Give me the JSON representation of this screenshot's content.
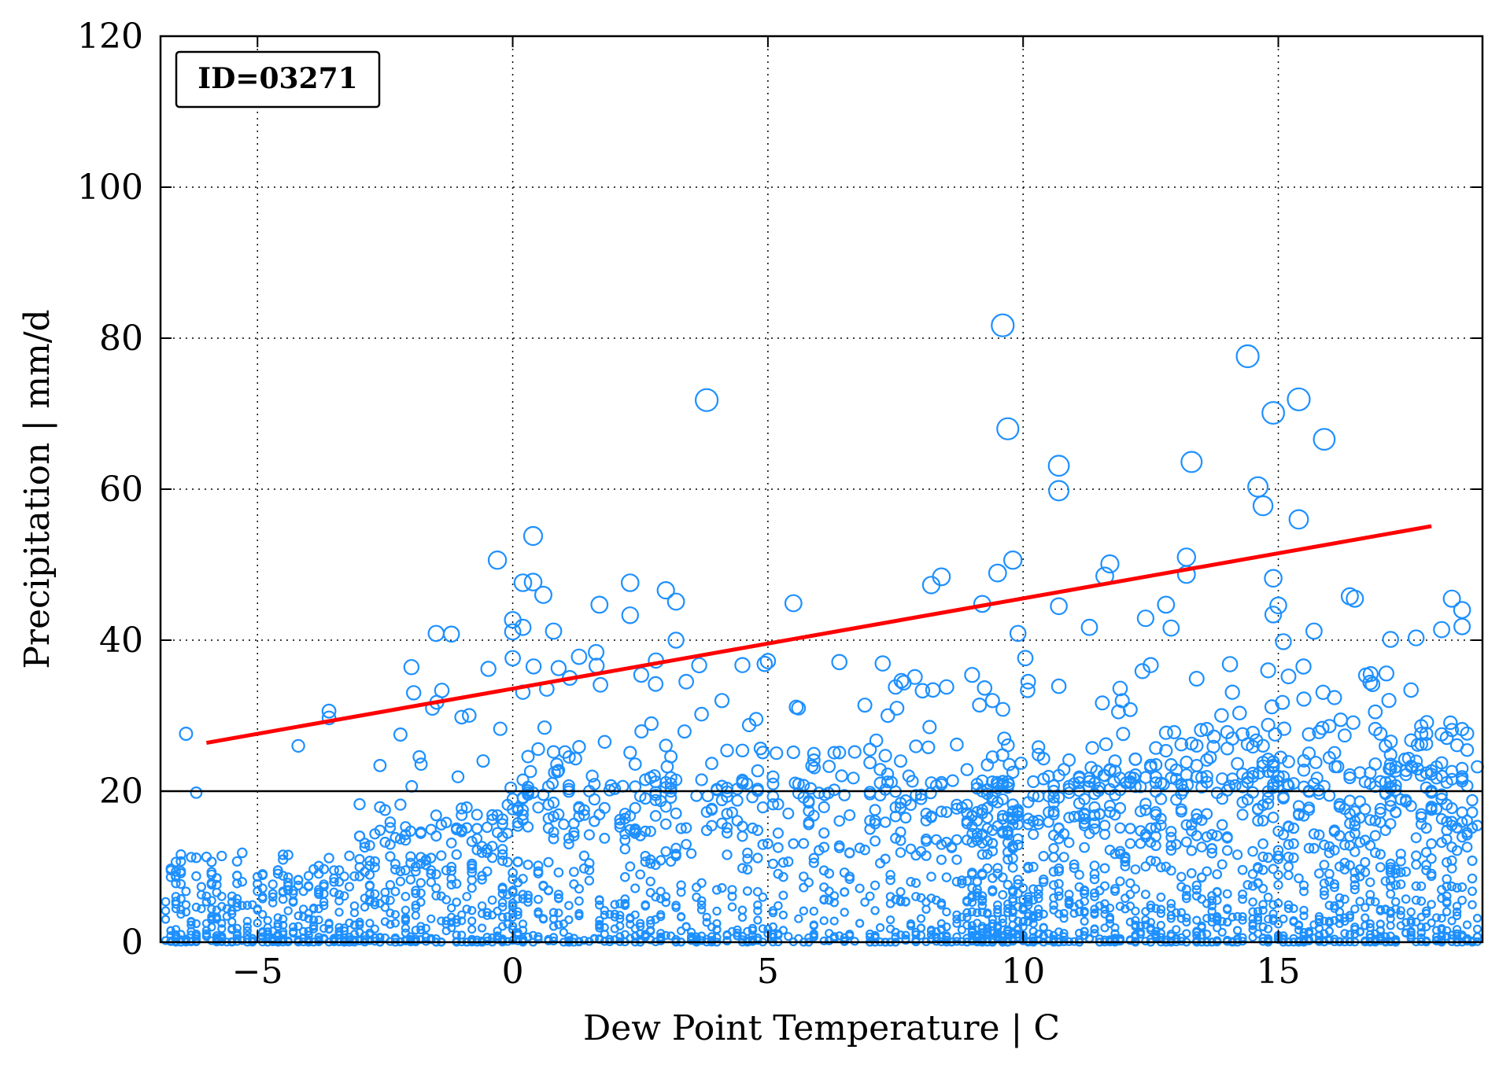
{
  "chart_data": {
    "type": "scatter",
    "title": "",
    "xlabel": "Dew Point Temperature | C",
    "ylabel": "Precipitation | mm/d",
    "xlim": [
      -6.9,
      19.0
    ],
    "ylim": [
      0,
      120
    ],
    "xticks": [
      -5,
      0,
      5,
      10,
      15
    ],
    "xtick_labels": [
      "−5",
      "0",
      "5",
      "10",
      "15"
    ],
    "yticks": [
      0,
      20,
      40,
      60,
      80,
      100,
      120
    ],
    "ytick_labels": [
      "0",
      "20",
      "40",
      "60",
      "80",
      "100",
      "120"
    ],
    "grid": true,
    "grid_style": "dotted",
    "annotation": "ID=03271",
    "annotation_position": "top-left",
    "threshold_line": {
      "y": 20,
      "color": "#000000"
    },
    "marker_color": "#1e90ff",
    "marker_style": "hollow circle, size scales with precipitation",
    "trend_line": {
      "color": "#ff0000",
      "points": [
        [
          -6.0,
          26.4
        ],
        [
          18.0,
          55.1
        ]
      ]
    },
    "points_outliers": [
      [
        9.6,
        81.7
      ],
      [
        14.4,
        77.6
      ],
      [
        3.8,
        71.8
      ],
      [
        15.4,
        71.9
      ],
      [
        14.9,
        70.1
      ],
      [
        9.7,
        68.0
      ],
      [
        15.9,
        66.6
      ],
      [
        13.3,
        63.6
      ],
      [
        10.7,
        63.1
      ],
      [
        14.6,
        60.3
      ],
      [
        10.7,
        59.8
      ],
      [
        14.7,
        57.8
      ],
      [
        15.4,
        56.0
      ],
      [
        0.4,
        53.8
      ],
      [
        -0.3,
        50.6
      ],
      [
        9.8,
        50.6
      ],
      [
        13.2,
        51.0
      ],
      [
        11.7,
        50.1
      ],
      [
        11.6,
        48.5
      ],
      [
        13.2,
        48.7
      ],
      [
        9.5,
        48.9
      ],
      [
        8.4,
        48.4
      ],
      [
        8.2,
        47.3
      ],
      [
        14.9,
        48.2
      ],
      [
        0.2,
        47.6
      ],
      [
        0.4,
        47.7
      ],
      [
        2.3,
        47.6
      ],
      [
        3.0,
        46.6
      ],
      [
        0.6,
        46.0
      ],
      [
        3.2,
        45.1
      ],
      [
        1.7,
        44.7
      ],
      [
        5.5,
        44.9
      ],
      [
        9.2,
        44.8
      ],
      [
        10.7,
        44.5
      ],
      [
        12.8,
        44.7
      ],
      [
        15.0,
        44.6
      ],
      [
        16.4,
        45.8
      ],
      [
        16.5,
        45.5
      ],
      [
        18.4,
        45.5
      ],
      [
        18.6,
        44.0
      ],
      [
        2.3,
        43.3
      ],
      [
        14.9,
        43.4
      ],
      [
        0.0,
        42.7
      ],
      [
        12.4,
        42.9
      ],
      [
        0.2,
        41.7
      ],
      [
        11.3,
        41.7
      ],
      [
        12.9,
        41.6
      ],
      [
        15.7,
        41.2
      ],
      [
        18.2,
        41.4
      ],
      [
        -1.5,
        40.9
      ],
      [
        -1.2,
        40.8
      ],
      [
        0.0,
        41.1
      ],
      [
        0.8,
        41.2
      ],
      [
        9.9,
        40.9
      ],
      [
        17.2,
        40.1
      ],
      [
        17.7,
        40.3
      ],
      [
        18.6,
        41.8
      ],
      [
        3.2,
        40.0
      ],
      [
        15.1,
        39.8
      ]
    ],
    "series": [
      {
        "name": "",
        "x": [
          -6.4,
          -3.6,
          -3.6,
          -2.2,
          -1.0,
          0.0,
          0.2,
          0.9,
          1.3,
          2.8,
          3.4,
          4.1,
          4.5,
          5.6,
          6.4,
          7.5,
          8.5,
          9.0,
          10.1,
          10.7,
          11.9,
          12.5,
          13.4,
          14.1,
          14.8,
          15.2,
          16.1,
          16.8,
          17.6,
          18.4,
          -6.2,
          -4.2,
          -2.6,
          3.7,
          6.9,
          9.4,
          12.1,
          15.5,
          16.9,
          17.9
        ],
        "values": [
          27.6,
          30.6,
          29.7,
          27.5,
          29.8,
          37.6,
          33.1,
          36.3,
          37.8,
          34.2,
          34.5,
          32.0,
          36.7,
          31.0,
          37.1,
          33.8,
          33.8,
          35.4,
          34.5,
          33.9,
          33.6,
          36.7,
          34.9,
          33.1,
          36.0,
          35.2,
          32.4,
          34.4,
          33.4,
          28.1,
          19.8,
          26.0,
          23.4,
          30.2,
          31.4,
          32.0,
          30.8,
          32.2,
          30.5,
          27.6
        ]
      }
    ]
  }
}
